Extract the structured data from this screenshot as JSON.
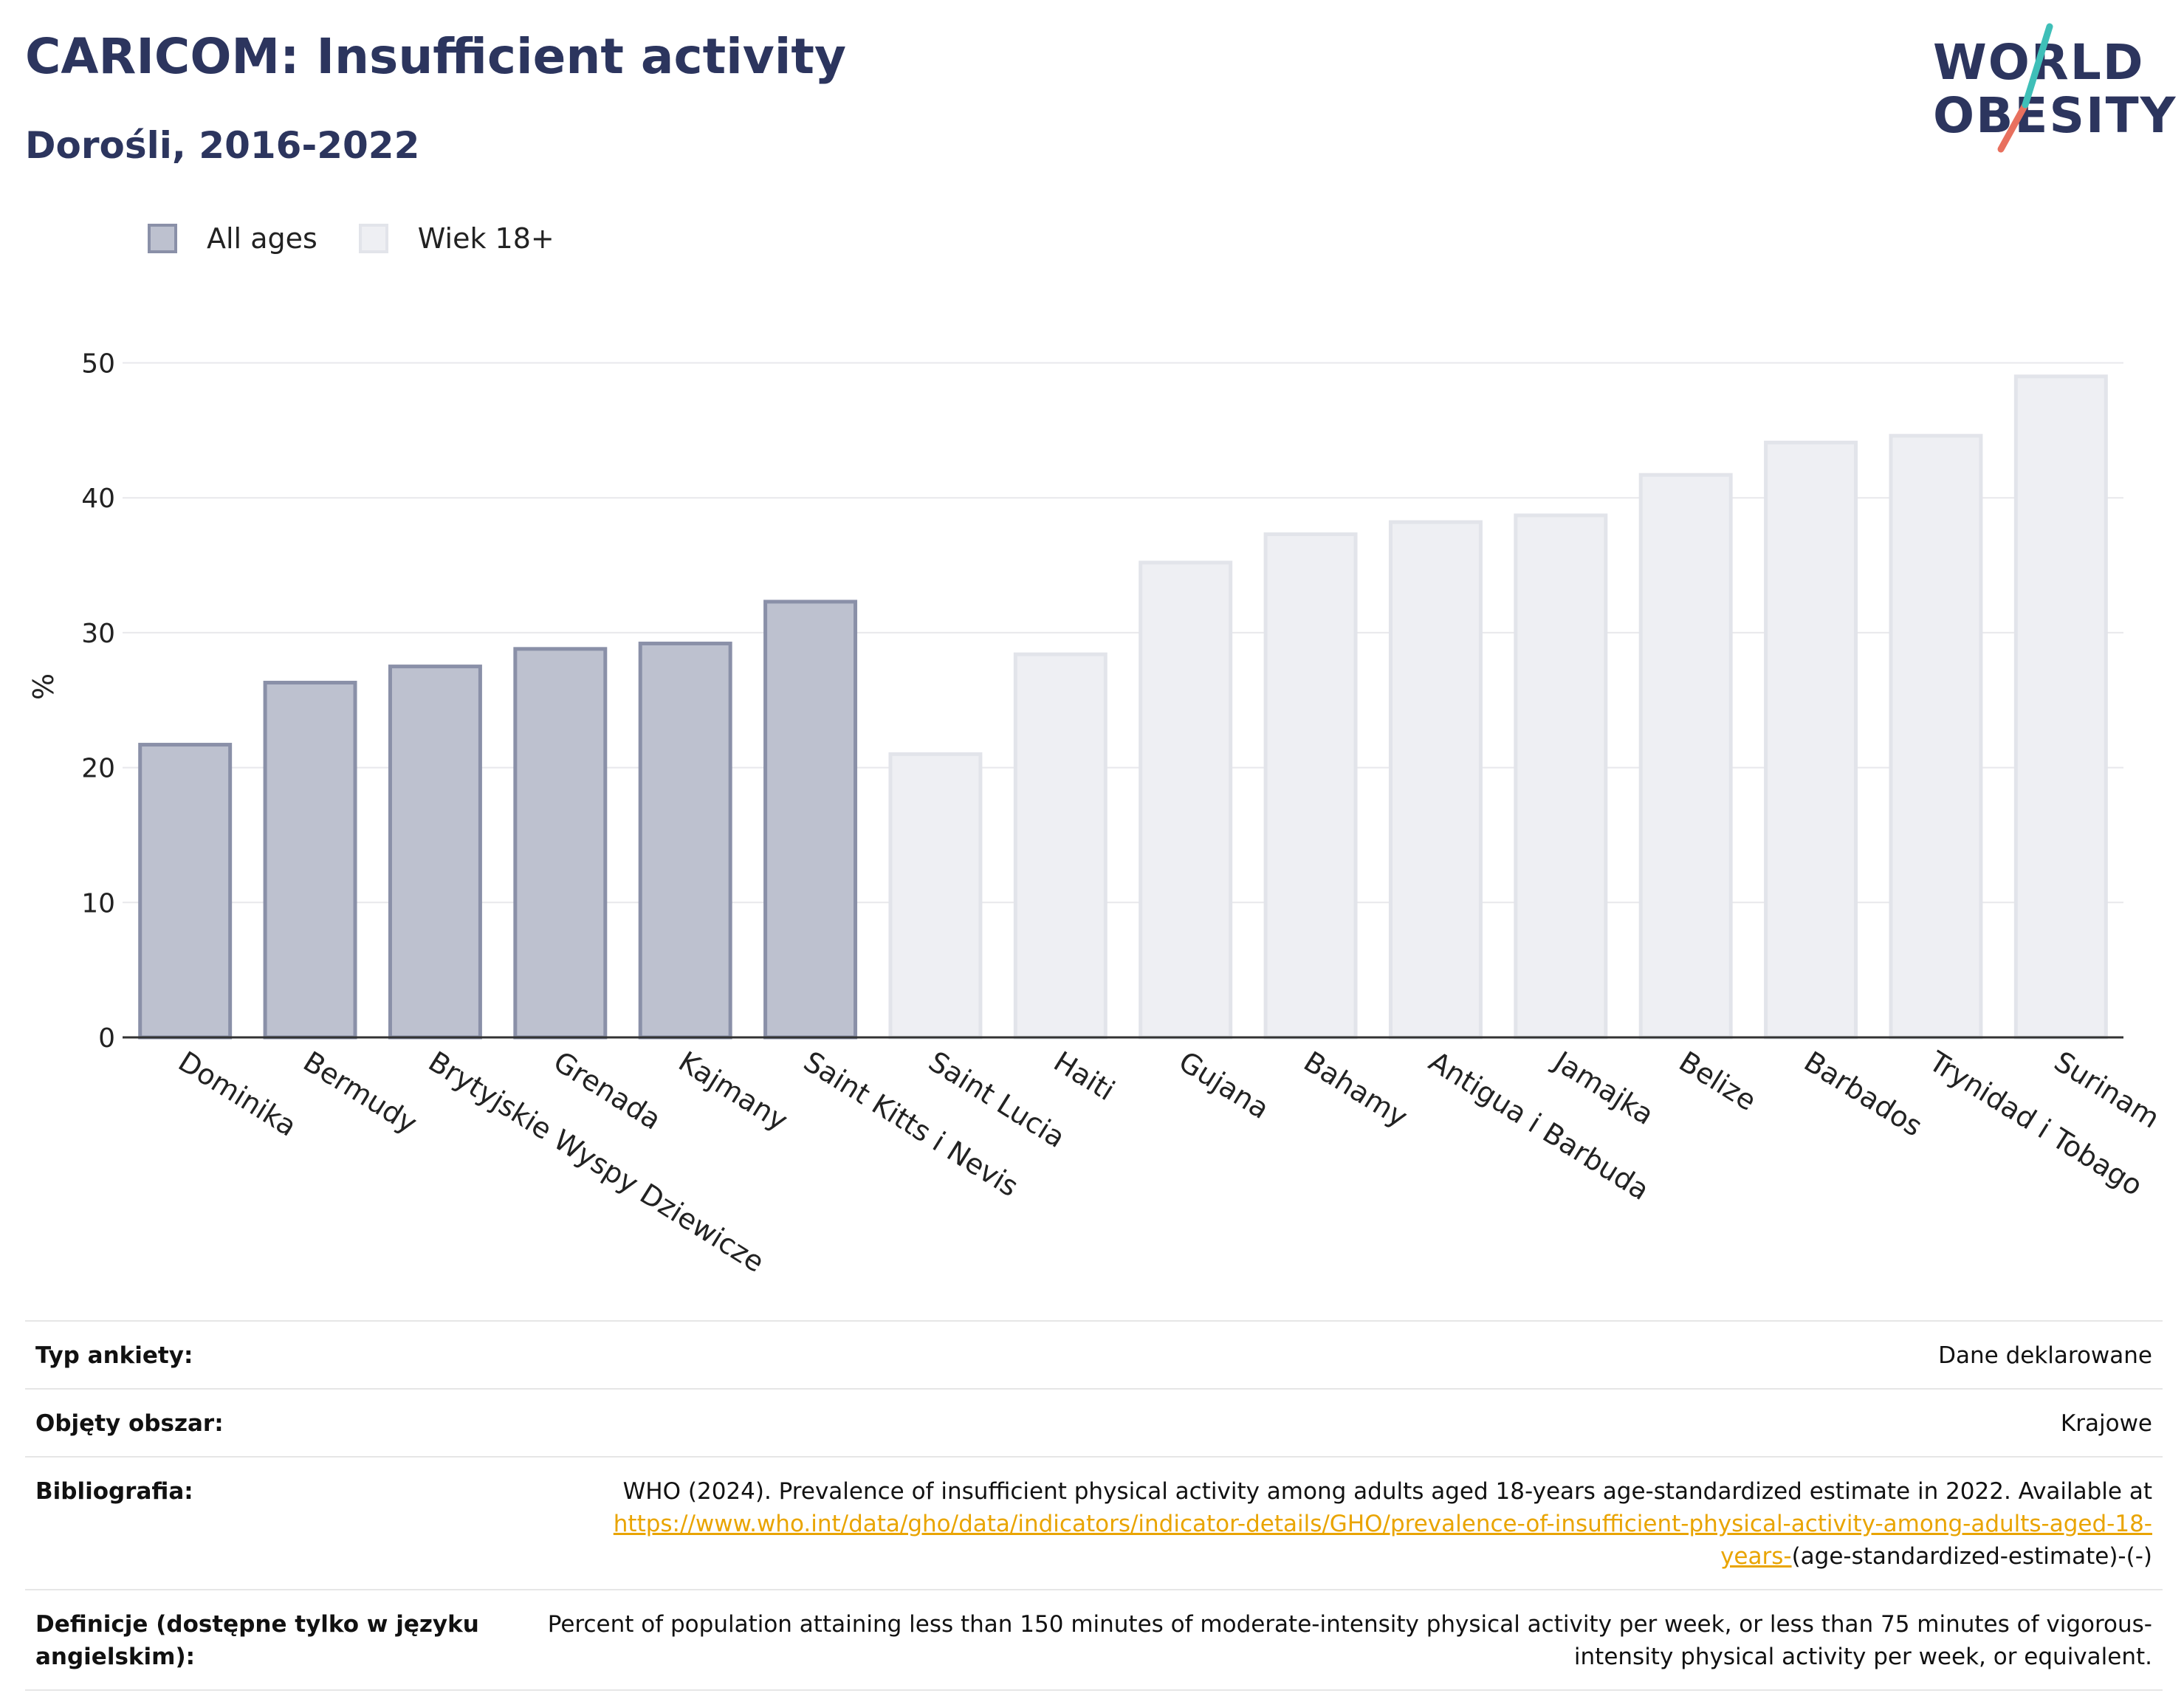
{
  "header": {
    "title": "CARICOM: Insufficient activity",
    "subtitle": "Dorośli, 2016-2022"
  },
  "logo": {
    "line1": "WORLD",
    "line2": "OBESITY",
    "slash_colors": [
      "#3fbfb8",
      "#e8705e"
    ]
  },
  "legend": [
    {
      "label": "All ages",
      "color": "#bdc1cf",
      "border": "#8a90a8"
    },
    {
      "label": "Wiek 18+",
      "color": "#eeeff3",
      "border": "#e2e4ea"
    }
  ],
  "chart_data": {
    "type": "bar",
    "ylabel": "%",
    "ylim": [
      0,
      52
    ],
    "yticks": [
      0,
      10,
      20,
      30,
      40,
      50
    ],
    "grid": true,
    "categories": [
      "Dominika",
      "Bermudy",
      "Brytyjskie Wyspy Dziewicze",
      "Grenada",
      "Kajmany",
      "Saint Kitts i Nevis",
      "Saint Lucia",
      "Haiti",
      "Gujana",
      "Bahamy",
      "Antigua i Barbuda",
      "Jamajka",
      "Belize",
      "Barbados",
      "Trynidad i Tobago",
      "Surinam"
    ],
    "series": [
      {
        "name": "All ages",
        "values": [
          21.7,
          26.3,
          27.5,
          28.8,
          29.2,
          32.3,
          null,
          null,
          null,
          null,
          null,
          null,
          null,
          null,
          null,
          null
        ]
      },
      {
        "name": "Wiek 18+",
        "values": [
          null,
          null,
          null,
          null,
          null,
          null,
          21.0,
          28.4,
          35.2,
          37.3,
          38.2,
          38.7,
          41.7,
          44.1,
          44.6,
          49.0
        ]
      }
    ]
  },
  "info": {
    "survey_type": {
      "label": "Typ ankiety:",
      "value": "Dane deklarowane"
    },
    "coverage": {
      "label": "Objęty obszar:",
      "value": "Krajowe"
    },
    "bibliography": {
      "label": "Bibliografia:",
      "text": "WHO (2024). Prevalence of insufficient physical activity among adults aged 18-years age-standardized estimate in 2022. Available at",
      "link": "https://www.who.int/data/gho/data/indicators/indicator-details/GHO/prevalence-of-insufficient-physical-activity-among-adults-aged-18-years-",
      "link_suffix": "(age-standardized-estimate)-(-)"
    },
    "definitions": {
      "label": "Definicje (dostępne tylko w języku angielskim):",
      "value": "Percent of population attaining less than 150 minutes of moderate-intensity physical activity per week, or less than 75 minutes of vigorous-intensity physical activity per week, or equivalent."
    }
  }
}
